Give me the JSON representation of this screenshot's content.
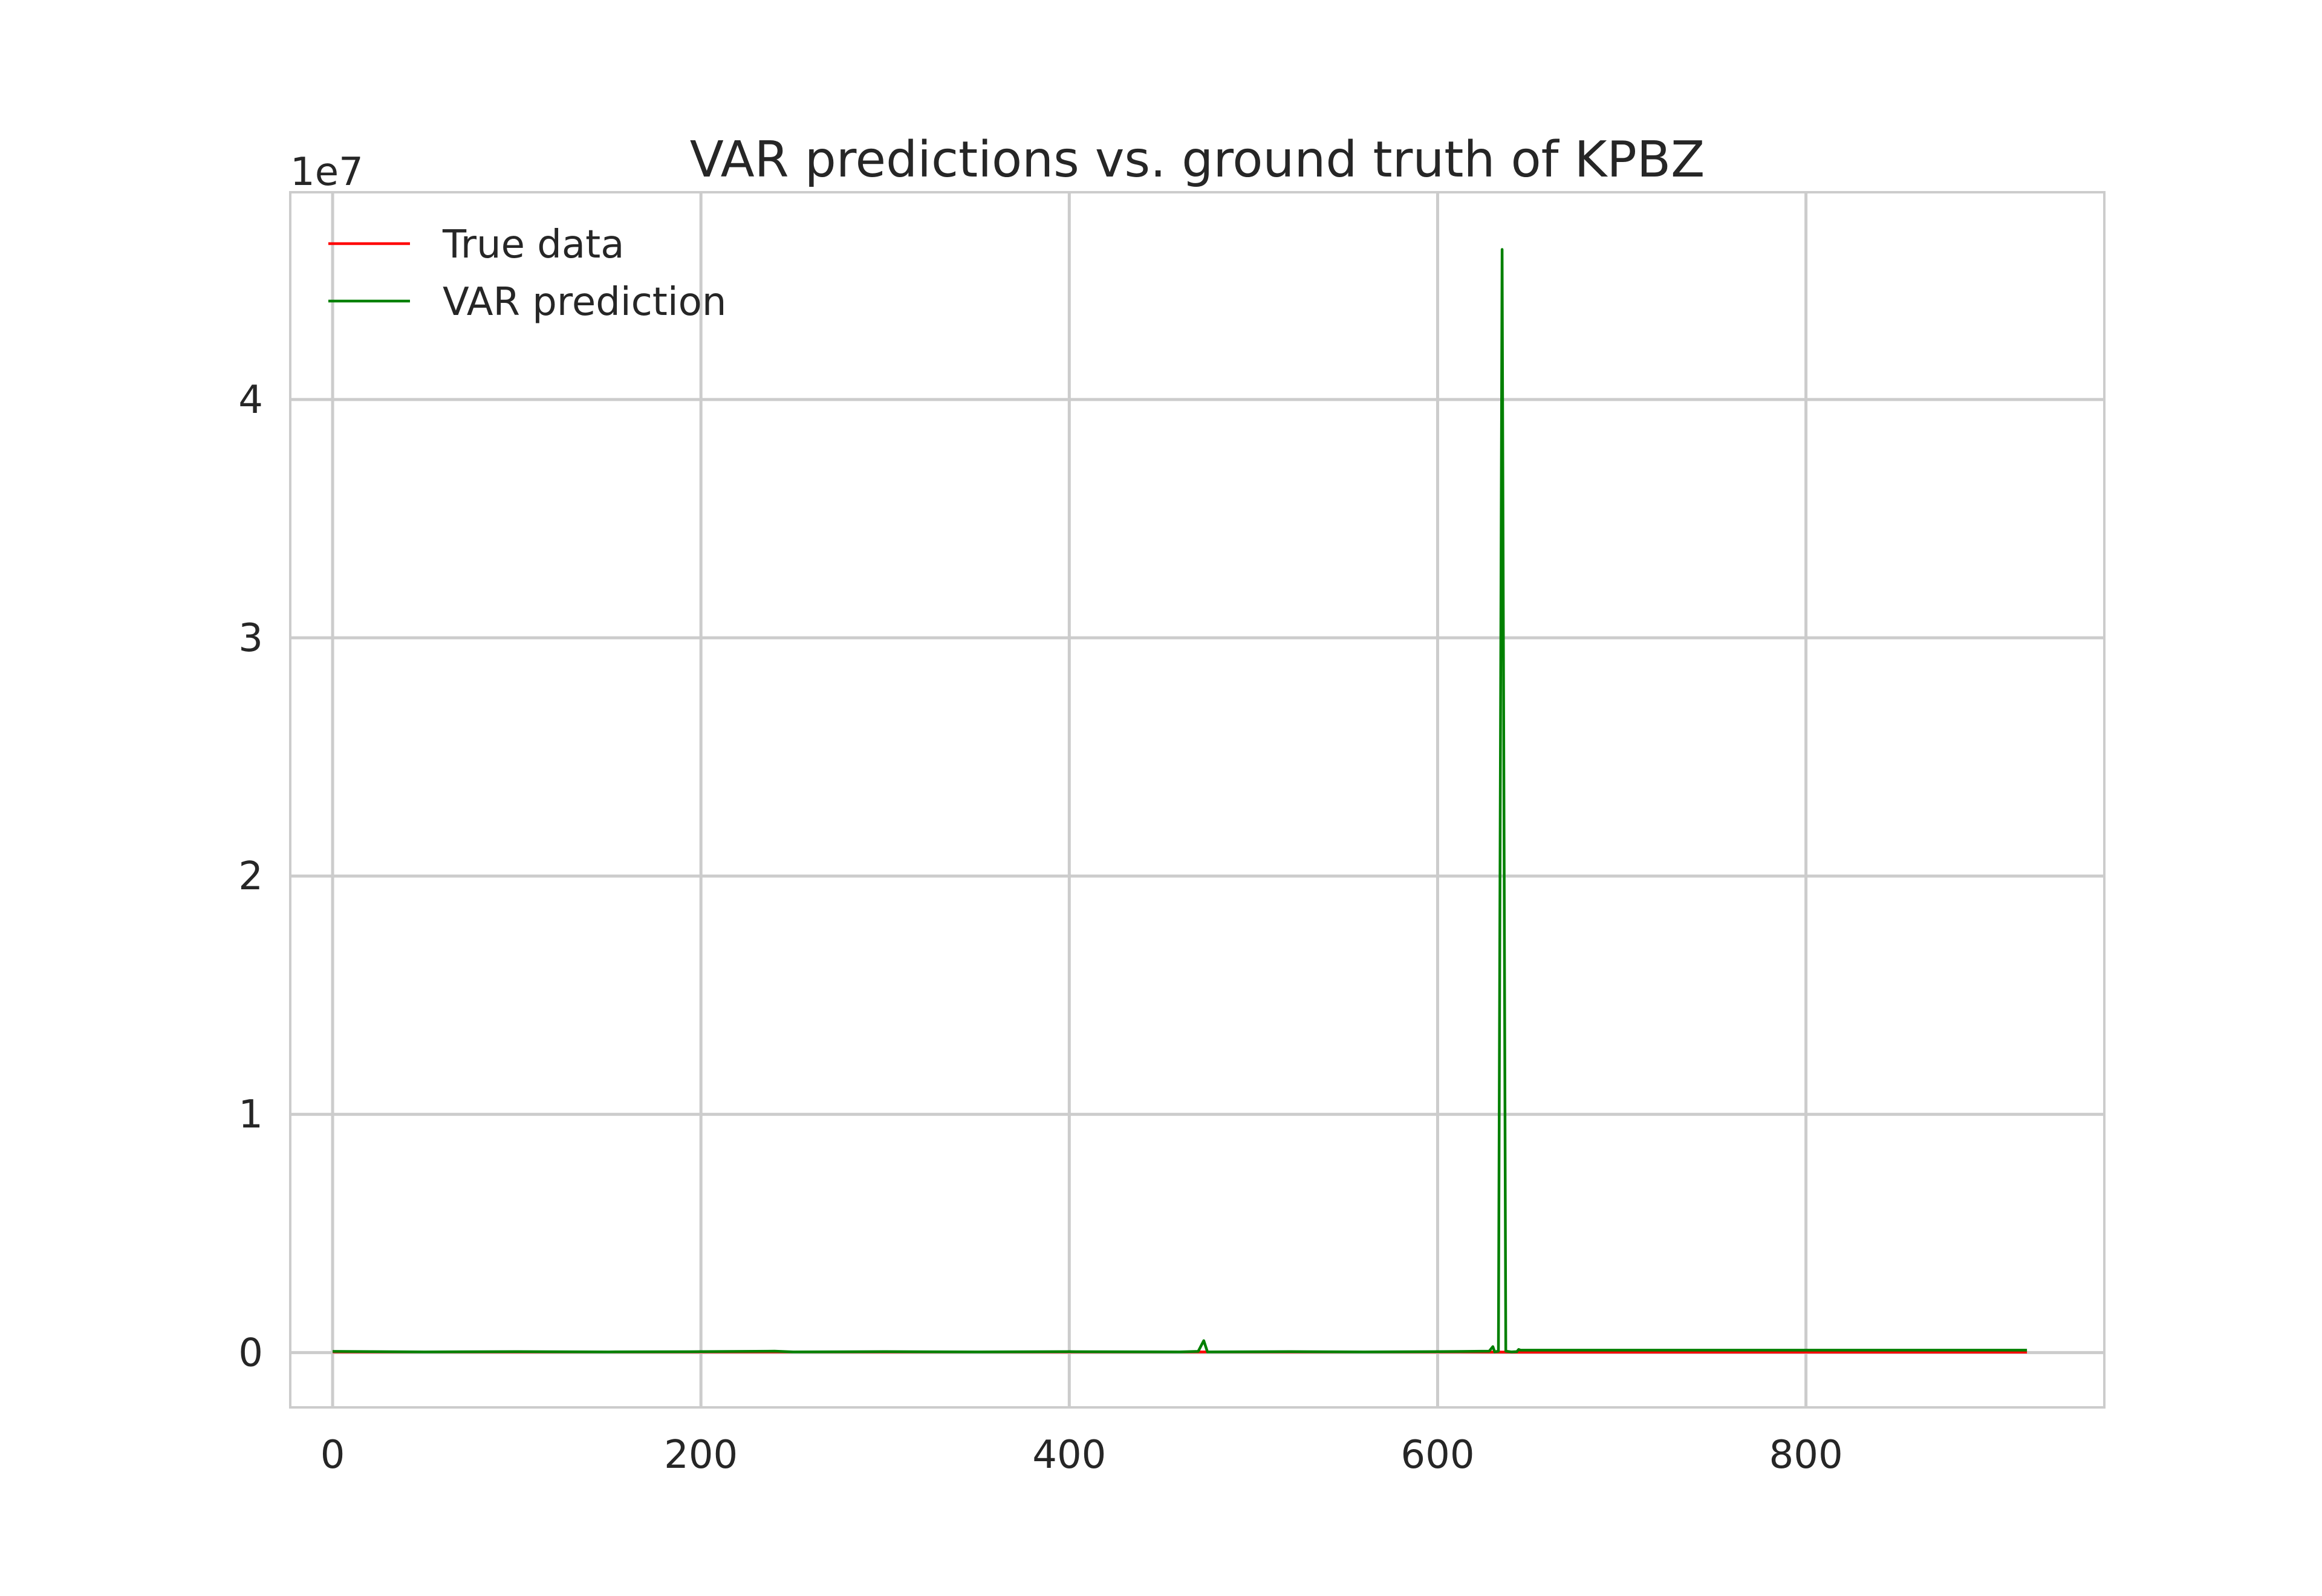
{
  "chart_data": {
    "type": "line",
    "title": "VAR predictions vs. ground truth of KPBZ",
    "xlabel": "",
    "ylabel": "",
    "y_offset_label": "1e7",
    "xlim": [
      -23,
      962
    ],
    "ylim": [
      -2300000,
      48700000
    ],
    "x_ticks": [
      0,
      200,
      400,
      600,
      800
    ],
    "x_tick_labels": [
      "0",
      "200",
      "400",
      "600",
      "800"
    ],
    "y_ticks": [
      0,
      10000000,
      20000000,
      30000000,
      40000000
    ],
    "y_tick_labels": [
      "0",
      "1",
      "2",
      "3",
      "4"
    ],
    "grid": true,
    "legend_position": "top-left",
    "series": [
      {
        "name": "True data",
        "color": "#ff0000",
        "points": [
          [
            0,
            30000
          ],
          [
            100,
            30000
          ],
          [
            200,
            30000
          ],
          [
            300,
            30000
          ],
          [
            400,
            30000
          ],
          [
            470,
            30000
          ],
          [
            600,
            30000
          ],
          [
            643,
            20000
          ],
          [
            700,
            20000
          ],
          [
            800,
            20000
          ],
          [
            920,
            20000
          ]
        ]
      },
      {
        "name": "VAR prediction",
        "color": "#008000",
        "points": [
          [
            0,
            50000
          ],
          [
            50,
            30000
          ],
          [
            100,
            40000
          ],
          [
            150,
            30000
          ],
          [
            200,
            40000
          ],
          [
            240,
            60000
          ],
          [
            250,
            30000
          ],
          [
            300,
            40000
          ],
          [
            350,
            30000
          ],
          [
            400,
            40000
          ],
          [
            460,
            30000
          ],
          [
            470,
            50000
          ],
          [
            473,
            500000
          ],
          [
            475,
            30000
          ],
          [
            520,
            40000
          ],
          [
            560,
            30000
          ],
          [
            600,
            40000
          ],
          [
            628,
            60000
          ],
          [
            630,
            250000
          ],
          [
            631,
            30000
          ],
          [
            633,
            60000
          ],
          [
            635,
            46300000
          ],
          [
            637,
            60000
          ],
          [
            640,
            30000
          ],
          [
            643,
            40000
          ],
          [
            644,
            130000
          ],
          [
            645,
            100000
          ],
          [
            700,
            100000
          ],
          [
            750,
            100000
          ],
          [
            800,
            100000
          ],
          [
            850,
            100000
          ],
          [
            920,
            100000
          ]
        ]
      }
    ]
  }
}
